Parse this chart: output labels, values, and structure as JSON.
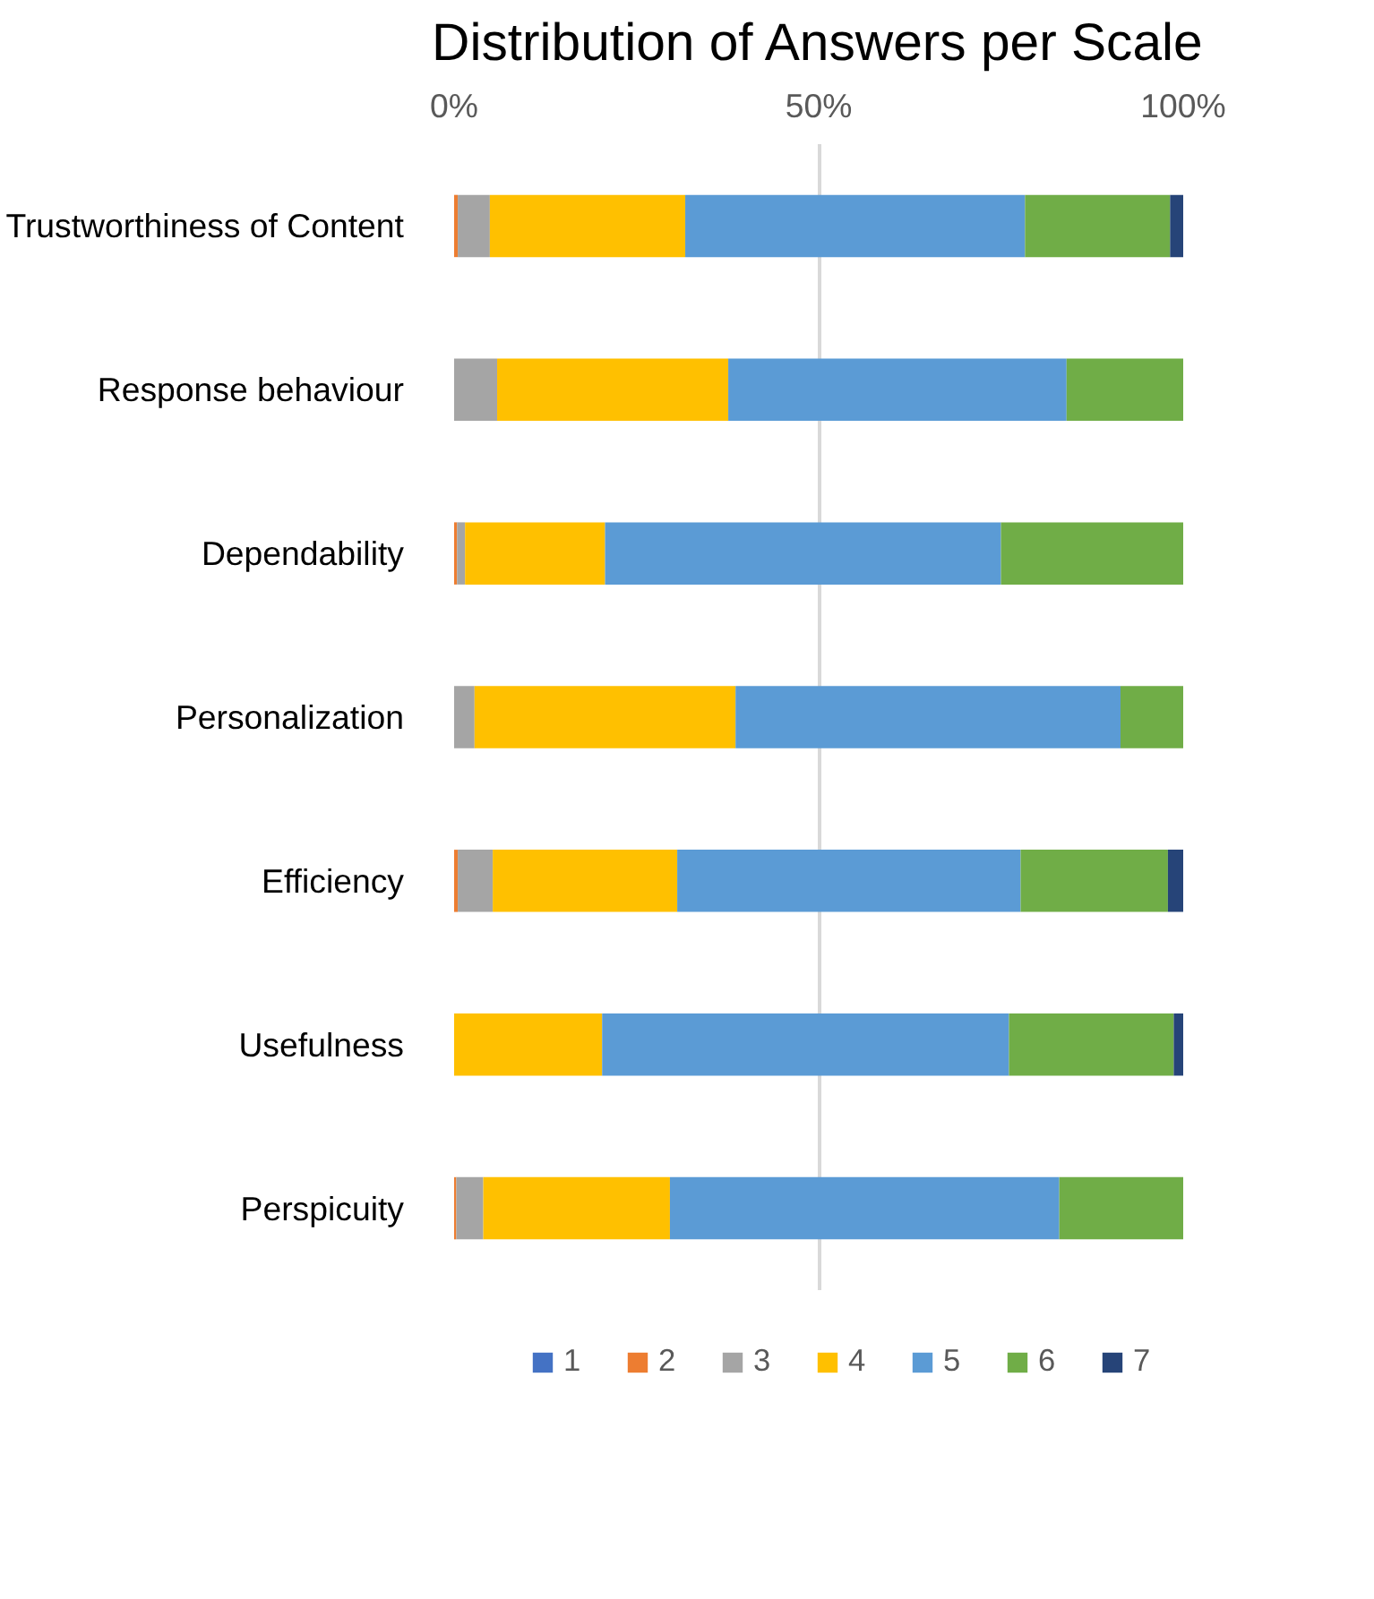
{
  "chart_data": {
    "type": "bar",
    "orientation": "horizontal",
    "stacked": true,
    "title": "Distribution of Answers per Scale",
    "categories": [
      "Trustworthiness of Content",
      "Response behaviour",
      "Dependability",
      "Personalization",
      "Efficiency",
      "Usefulness",
      "Perspicuity"
    ],
    "series": [
      {
        "name": "1",
        "color": "#4472c4",
        "values": [
          0,
          0,
          0,
          0,
          0,
          0,
          0
        ]
      },
      {
        "name": "2",
        "color": "#ed7d31",
        "values": [
          0.5,
          0,
          0.4,
          0,
          0.5,
          0,
          0.3
        ]
      },
      {
        "name": "3",
        "color": "#a5a5a5",
        "values": [
          4.4,
          5.9,
          1.1,
          2.8,
          4.8,
          0,
          3.7
        ]
      },
      {
        "name": "4",
        "color": "#ffc000",
        "values": [
          26.8,
          31.7,
          19.2,
          35.8,
          25.3,
          20.3,
          25.6
        ]
      },
      {
        "name": "5",
        "color": "#5b9bd5",
        "values": [
          46.6,
          46.4,
          54.3,
          52.8,
          47.1,
          55.8,
          53.4
        ]
      },
      {
        "name": "6",
        "color": "#70ad47",
        "values": [
          19.9,
          16.0,
          25.0,
          8.6,
          20.2,
          22.6,
          17.0
        ]
      },
      {
        "name": "7",
        "color": "#264478",
        "values": [
          1.8,
          0,
          0,
          0,
          2.1,
          1.3,
          0
        ]
      }
    ],
    "xlim": [
      0,
      100
    ],
    "xticks": [
      {
        "value": 0,
        "label": "0%"
      },
      {
        "value": 50,
        "label": "50%"
      },
      {
        "value": 100,
        "label": "100%"
      }
    ],
    "grid": "x",
    "legend": "bottom"
  }
}
